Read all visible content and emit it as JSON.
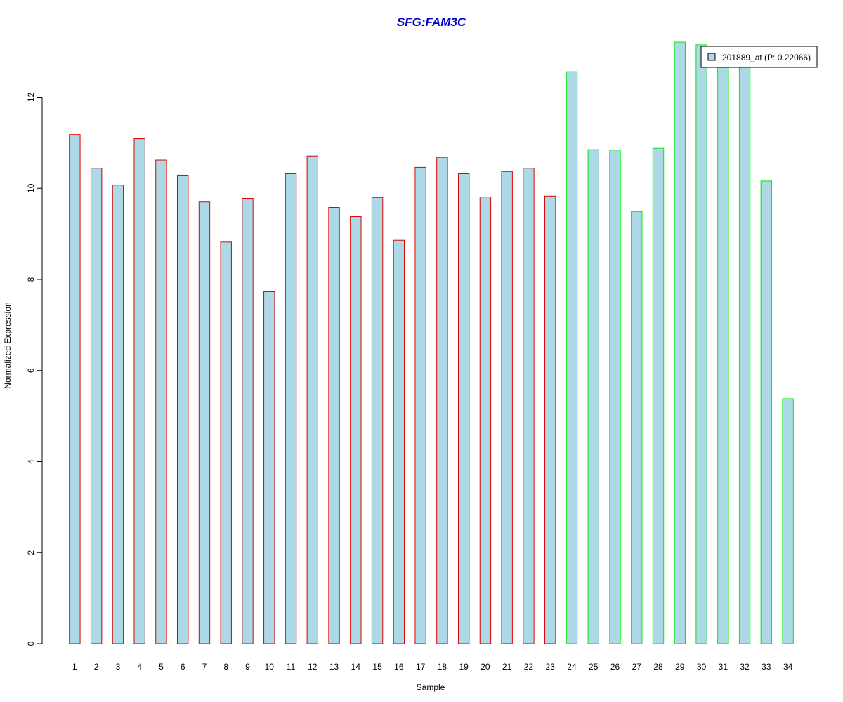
{
  "chart_data": {
    "type": "bar",
    "title": "SFG:FAM3C",
    "xlabel": "Sample",
    "ylabel": "Normalized Expression",
    "categories": [
      "1",
      "2",
      "3",
      "4",
      "5",
      "6",
      "7",
      "8",
      "9",
      "10",
      "11",
      "12",
      "13",
      "14",
      "15",
      "16",
      "17",
      "18",
      "19",
      "20",
      "21",
      "22",
      "23",
      "24",
      "25",
      "26",
      "27",
      "28",
      "29",
      "30",
      "31",
      "32",
      "33",
      "34"
    ],
    "series": [
      {
        "name": "201889_at (P: 0.22066)",
        "values": [
          11.18,
          10.44,
          10.07,
          11.09,
          10.62,
          10.29,
          9.7,
          8.82,
          9.78,
          7.73,
          10.32,
          10.71,
          9.58,
          9.38,
          9.8,
          8.86,
          10.46,
          10.68,
          10.32,
          9.81,
          10.37,
          10.44,
          9.83,
          12.56,
          10.85,
          10.84,
          9.49,
          10.88,
          13.21,
          13.15,
          13.09,
          12.97,
          10.16,
          5.38
        ]
      }
    ],
    "groups": [
      {
        "from": 1,
        "to": 23,
        "border_color": "#dd0000"
      },
      {
        "from": 24,
        "to": 34,
        "border_color": "#00ee00"
      }
    ],
    "fill_color": "#add8e6",
    "title_color": "#0000cc",
    "yticks": [
      0,
      2,
      4,
      6,
      8,
      10,
      12
    ],
    "ylim": [
      0,
      13.21
    ],
    "grid": false,
    "legend_position": "top-right"
  }
}
